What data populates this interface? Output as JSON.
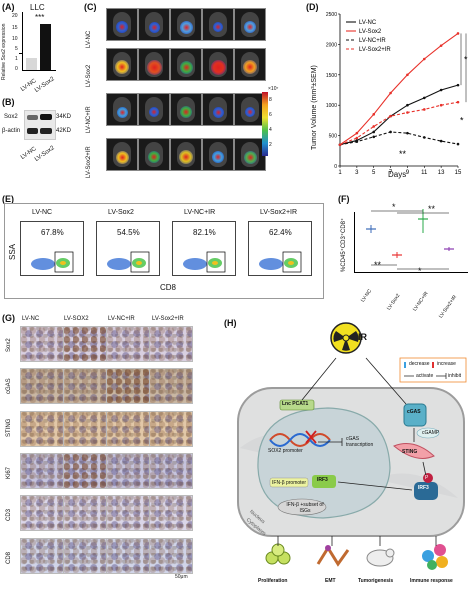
{
  "panels": {
    "A": "(A)",
    "B": "(B)",
    "C": "(C)",
    "D": "(D)",
    "E": "(E)",
    "F": "(F)",
    "G": "(G)",
    "H": "(H)"
  },
  "panelA": {
    "title": "LLC",
    "ylabel": "Relative Sox2 expression",
    "sig": "***",
    "categories": [
      "LV-NC",
      "LV-Sox2"
    ],
    "yticks": [
      "0",
      "1",
      "5",
      "10",
      "15",
      "20"
    ]
  },
  "panelB": {
    "bands": [
      {
        "name": "Sox2",
        "kd": "34KD"
      },
      {
        "name": "β-actin",
        "kd": "42KD"
      }
    ],
    "lanes": [
      "LV-NC",
      "LV-Sox2"
    ]
  },
  "panelC": {
    "rows": [
      "LV-NC",
      "LV-Sox2",
      "LV-NC+IR",
      "LV-Sox2+IR"
    ],
    "scale_label": "×10⁷",
    "scale_ticks": [
      "8",
      "6",
      "4",
      "2"
    ]
  },
  "chart_data": {
    "type": "line",
    "ylabel": "Tumor Volume (mm³±SEM)",
    "xlabel": "Days",
    "x": [
      1,
      3,
      5,
      7,
      9,
      11,
      13,
      15
    ],
    "ylim": [
      0,
      2500
    ],
    "yticks": [
      "0",
      "500",
      "1000",
      "1500",
      "2000",
      "2500"
    ],
    "series": [
      {
        "name": "LV-NC",
        "color": "#111111",
        "values": [
          350,
          420,
          560,
          820,
          1000,
          1120,
          1250,
          1330
        ]
      },
      {
        "name": "LV-Sox2",
        "color": "#e8312a",
        "values": [
          350,
          540,
          850,
          1200,
          1500,
          1760,
          1980,
          2180
        ]
      },
      {
        "name": "LV-NC+IR",
        "color": "#111111",
        "values": [
          350,
          400,
          480,
          560,
          540,
          470,
          410,
          360
        ]
      },
      {
        "name": "LV-Sox2+IR",
        "color": "#e8312a",
        "values": [
          350,
          460,
          650,
          820,
          880,
          930,
          1000,
          1050
        ]
      }
    ],
    "annotations": [
      "**",
      "*",
      "*"
    ]
  },
  "panelE": {
    "samples": [
      {
        "name": "LV-NC",
        "pct": "67.8%"
      },
      {
        "name": "LV-Sox2",
        "pct": "54.5%"
      },
      {
        "name": "LV-NC+IR",
        "pct": "82.1%"
      },
      {
        "name": "LV-Sox2+IR",
        "pct": "62.4%"
      }
    ],
    "ylabel": "SSA",
    "xlabel": "CD8"
  },
  "panelF": {
    "ylabel": "%CD45⁺CD3⁺CD8⁺",
    "categories": [
      "LV-NC",
      "LV-Sox2",
      "LV-NC+IR",
      "LV-Sox2+IR"
    ],
    "sig_top": [
      "*",
      "**"
    ],
    "sig_bottom": [
      "**",
      "*"
    ]
  },
  "panelG": {
    "columns": [
      "LV-NC",
      "LV-SOX2",
      "LV-NC+IR",
      "LV-Sox2+IR"
    ],
    "rows": [
      "Sox2",
      "cGAS",
      "STING",
      "Ki67",
      "CD3",
      "CD8"
    ],
    "scale": "50μm"
  },
  "panelH": {
    "ir": "IR",
    "legend": {
      "decrease": "decrease",
      "increase": "increase",
      "activate": "activate",
      "inhibit": "inhibit"
    },
    "lnc": "Lnc PCAT1",
    "promoter": "SOX2 promoter",
    "cgas_tx": "cGAS transcription",
    "cgas": "cGAS",
    "cgamp": "cGAMP",
    "sting": "STING",
    "irf3": "IRF3",
    "irf3b": "IRF3",
    "ifn_promoter": "IFN-β promoter",
    "ifn_set": "IFN-β +subset of ISGs",
    "nucleus": "Nucleus",
    "cytoplasm": "Cytoplasm",
    "p": "P",
    "outcomes": [
      "Proliferation",
      "EMT",
      "Tumorigenesis",
      "Immune response"
    ]
  }
}
